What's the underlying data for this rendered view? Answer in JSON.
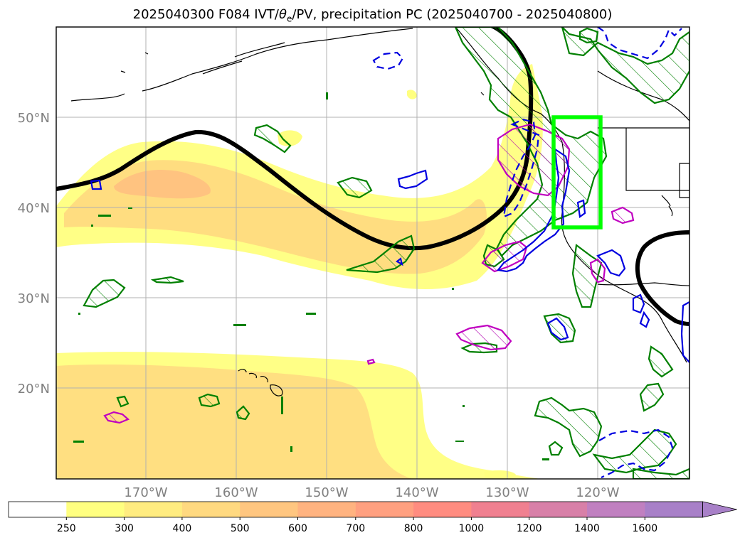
{
  "title": {
    "prefix": "2025040300 F084 IVT/",
    "theta_symbol": "θ",
    "theta_sub": "e",
    "suffix": "/PV, precipitation PC (2025040700 - 2025040800)"
  },
  "map": {
    "lat_ticks": [
      "50°N",
      "40°N",
      "30°N",
      "20°N"
    ],
    "lon_ticks": [
      "170°W",
      "160°W",
      "150°W",
      "140°W",
      "130°W",
      "120°W"
    ],
    "highlight_box_color": "#00ff00"
  },
  "colorbar": {
    "levels": [
      "250",
      "300",
      "400",
      "500",
      "600",
      "700",
      "800",
      "1000",
      "1200",
      "1400",
      "1600"
    ],
    "colors": [
      "#ffffff",
      "#ffff80",
      "#ffec80",
      "#ffd980",
      "#ffc680",
      "#ffb380",
      "#ffa080",
      "#ff8c80",
      "#f08090",
      "#d880a8",
      "#c080c0",
      "#a880c8"
    ]
  }
}
